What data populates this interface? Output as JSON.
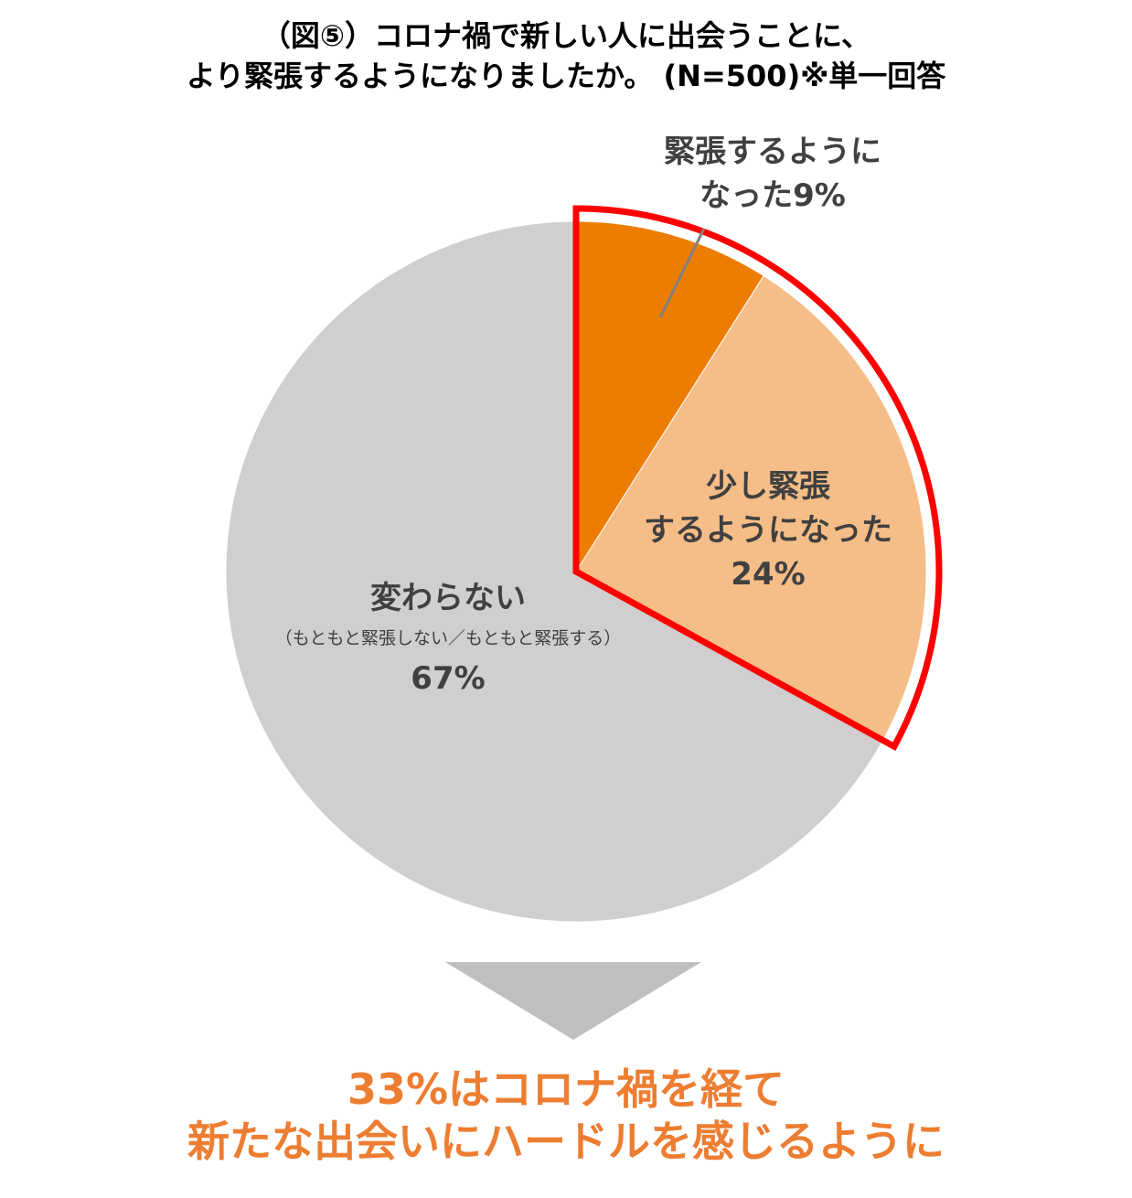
{
  "chart_data": {
    "type": "pie",
    "title": [
      "（図⑤）コロナ禍で新しい人に出会うことに、",
      "より緊張するようになりましたか。 (N=500)※単一回答"
    ],
    "categories": [
      "緊張するように\nなった",
      "少し緊張\nするようになった",
      "変わらない"
    ],
    "category_notes": [
      null,
      null,
      "（もともと緊張しない／もともと緊張する）"
    ],
    "values": [
      9,
      24,
      67
    ],
    "value_labels": [
      "9%",
      "24%",
      "67%"
    ],
    "colors": [
      "#ed7d00",
      "#f5bd87",
      "#d0cece"
    ],
    "highlight_color": "#ff0000",
    "conclusion": [
      "33%はコロナ禍を経て",
      "新たな出会いにハードルを感じるように"
    ],
    "conclusion_color": "#ed7d31"
  }
}
